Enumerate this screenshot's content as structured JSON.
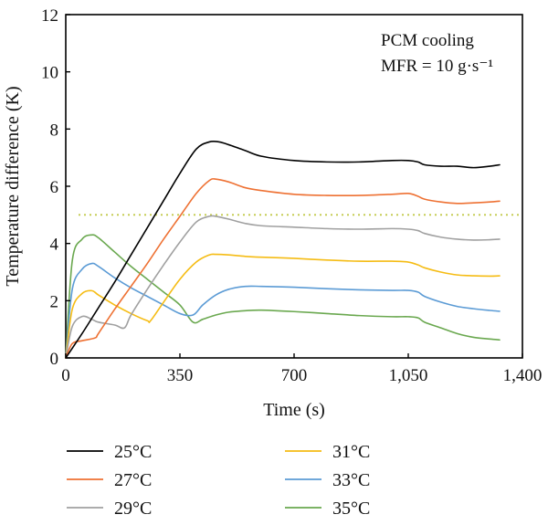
{
  "chart_data": {
    "type": "line",
    "xlabel": "Time (s)",
    "ylabel": "Temperature difference (K)",
    "xlim": [
      0,
      1400
    ],
    "ylim": [
      0,
      12
    ],
    "xticks": [
      0,
      350,
      700,
      1050,
      1400
    ],
    "xtick_labels": [
      "0",
      "350",
      "700",
      "1,050",
      "1,400"
    ],
    "yticks": [
      0,
      2,
      4,
      6,
      8,
      10,
      12
    ],
    "ytick_labels": [
      "0",
      "2",
      "4",
      "6",
      "8",
      "10",
      "12"
    ],
    "grid": false,
    "legend_position": "bottom",
    "annotations": [
      "PCM cooling",
      "MFR = 10 g·s⁻¹"
    ],
    "reference_line": {
      "y": 5,
      "style": "dotted",
      "color": "#c2c94a"
    },
    "series": [
      {
        "name": "25°C",
        "color": "#000000",
        "x": [
          0,
          50,
          100,
          150,
          200,
          250,
          300,
          350,
          400,
          440,
          470,
          500,
          550,
          600,
          700,
          800,
          900,
          1000,
          1050,
          1080,
          1100,
          1150,
          1200,
          1250,
          1300,
          1330
        ],
        "y": [
          0.0,
          0.85,
          1.75,
          2.65,
          3.6,
          4.55,
          5.5,
          6.45,
          7.3,
          7.55,
          7.55,
          7.45,
          7.25,
          7.05,
          6.9,
          6.85,
          6.85,
          6.9,
          6.9,
          6.85,
          6.75,
          6.7,
          6.7,
          6.65,
          6.7,
          6.75
        ]
      },
      {
        "name": "27°C",
        "color": "#ee7133",
        "x": [
          0,
          20,
          50,
          90,
          100,
          150,
          200,
          250,
          300,
          350,
          400,
          440,
          460,
          500,
          550,
          600,
          700,
          800,
          900,
          1000,
          1050,
          1080,
          1100,
          1150,
          1200,
          1250,
          1300,
          1330
        ],
        "y": [
          0.0,
          0.5,
          0.6,
          0.7,
          0.85,
          1.7,
          2.5,
          3.3,
          4.15,
          4.95,
          5.75,
          6.2,
          6.25,
          6.15,
          5.95,
          5.85,
          5.72,
          5.68,
          5.68,
          5.72,
          5.75,
          5.65,
          5.55,
          5.45,
          5.4,
          5.42,
          5.45,
          5.48
        ]
      },
      {
        "name": "29°C",
        "color": "#a0a0a0",
        "x": [
          0,
          20,
          50,
          80,
          100,
          150,
          180,
          200,
          250,
          300,
          350,
          400,
          440,
          460,
          500,
          550,
          600,
          700,
          800,
          900,
          1000,
          1050,
          1080,
          1100,
          1150,
          1200,
          1250,
          1300,
          1330
        ],
        "y": [
          0.0,
          1.1,
          1.45,
          1.35,
          1.25,
          1.15,
          1.05,
          1.5,
          2.4,
          3.25,
          4.05,
          4.75,
          4.95,
          4.95,
          4.85,
          4.7,
          4.62,
          4.57,
          4.52,
          4.5,
          4.52,
          4.5,
          4.45,
          4.35,
          4.22,
          4.15,
          4.12,
          4.13,
          4.15
        ]
      },
      {
        "name": "31°C",
        "color": "#f5bc14",
        "x": [
          0,
          20,
          50,
          80,
          100,
          150,
          200,
          250,
          260,
          300,
          350,
          400,
          440,
          460,
          500,
          550,
          600,
          700,
          800,
          900,
          1000,
          1050,
          1080,
          1100,
          1150,
          1200,
          1250,
          1300,
          1330
        ],
        "y": [
          0.0,
          1.7,
          2.25,
          2.35,
          2.2,
          1.85,
          1.55,
          1.3,
          1.3,
          1.95,
          2.75,
          3.35,
          3.6,
          3.62,
          3.6,
          3.55,
          3.52,
          3.48,
          3.42,
          3.38,
          3.38,
          3.35,
          3.25,
          3.15,
          3.0,
          2.9,
          2.87,
          2.86,
          2.87
        ]
      },
      {
        "name": "33°C",
        "color": "#5b9bd5",
        "x": [
          0,
          20,
          50,
          80,
          100,
          150,
          200,
          250,
          300,
          350,
          390,
          420,
          460,
          500,
          550,
          600,
          700,
          800,
          900,
          1000,
          1050,
          1080,
          1100,
          1150,
          1200,
          1250,
          1300,
          1330
        ],
        "y": [
          0.0,
          2.4,
          3.1,
          3.3,
          3.2,
          2.8,
          2.45,
          2.15,
          1.85,
          1.55,
          1.5,
          1.85,
          2.2,
          2.4,
          2.5,
          2.5,
          2.47,
          2.42,
          2.38,
          2.36,
          2.36,
          2.3,
          2.15,
          1.95,
          1.8,
          1.72,
          1.66,
          1.63
        ]
      },
      {
        "name": "35°C",
        "color": "#6aa84f",
        "x": [
          0,
          20,
          50,
          80,
          100,
          150,
          200,
          250,
          300,
          350,
          390,
          420,
          460,
          500,
          550,
          600,
          700,
          800,
          900,
          1000,
          1050,
          1080,
          1100,
          1150,
          1200,
          1250,
          1300,
          1330
        ],
        "y": [
          0.0,
          3.4,
          4.15,
          4.3,
          4.2,
          3.7,
          3.2,
          2.75,
          2.3,
          1.85,
          1.25,
          1.35,
          1.5,
          1.6,
          1.65,
          1.67,
          1.62,
          1.55,
          1.48,
          1.44,
          1.44,
          1.4,
          1.25,
          1.05,
          0.85,
          0.72,
          0.66,
          0.63
        ]
      }
    ]
  }
}
